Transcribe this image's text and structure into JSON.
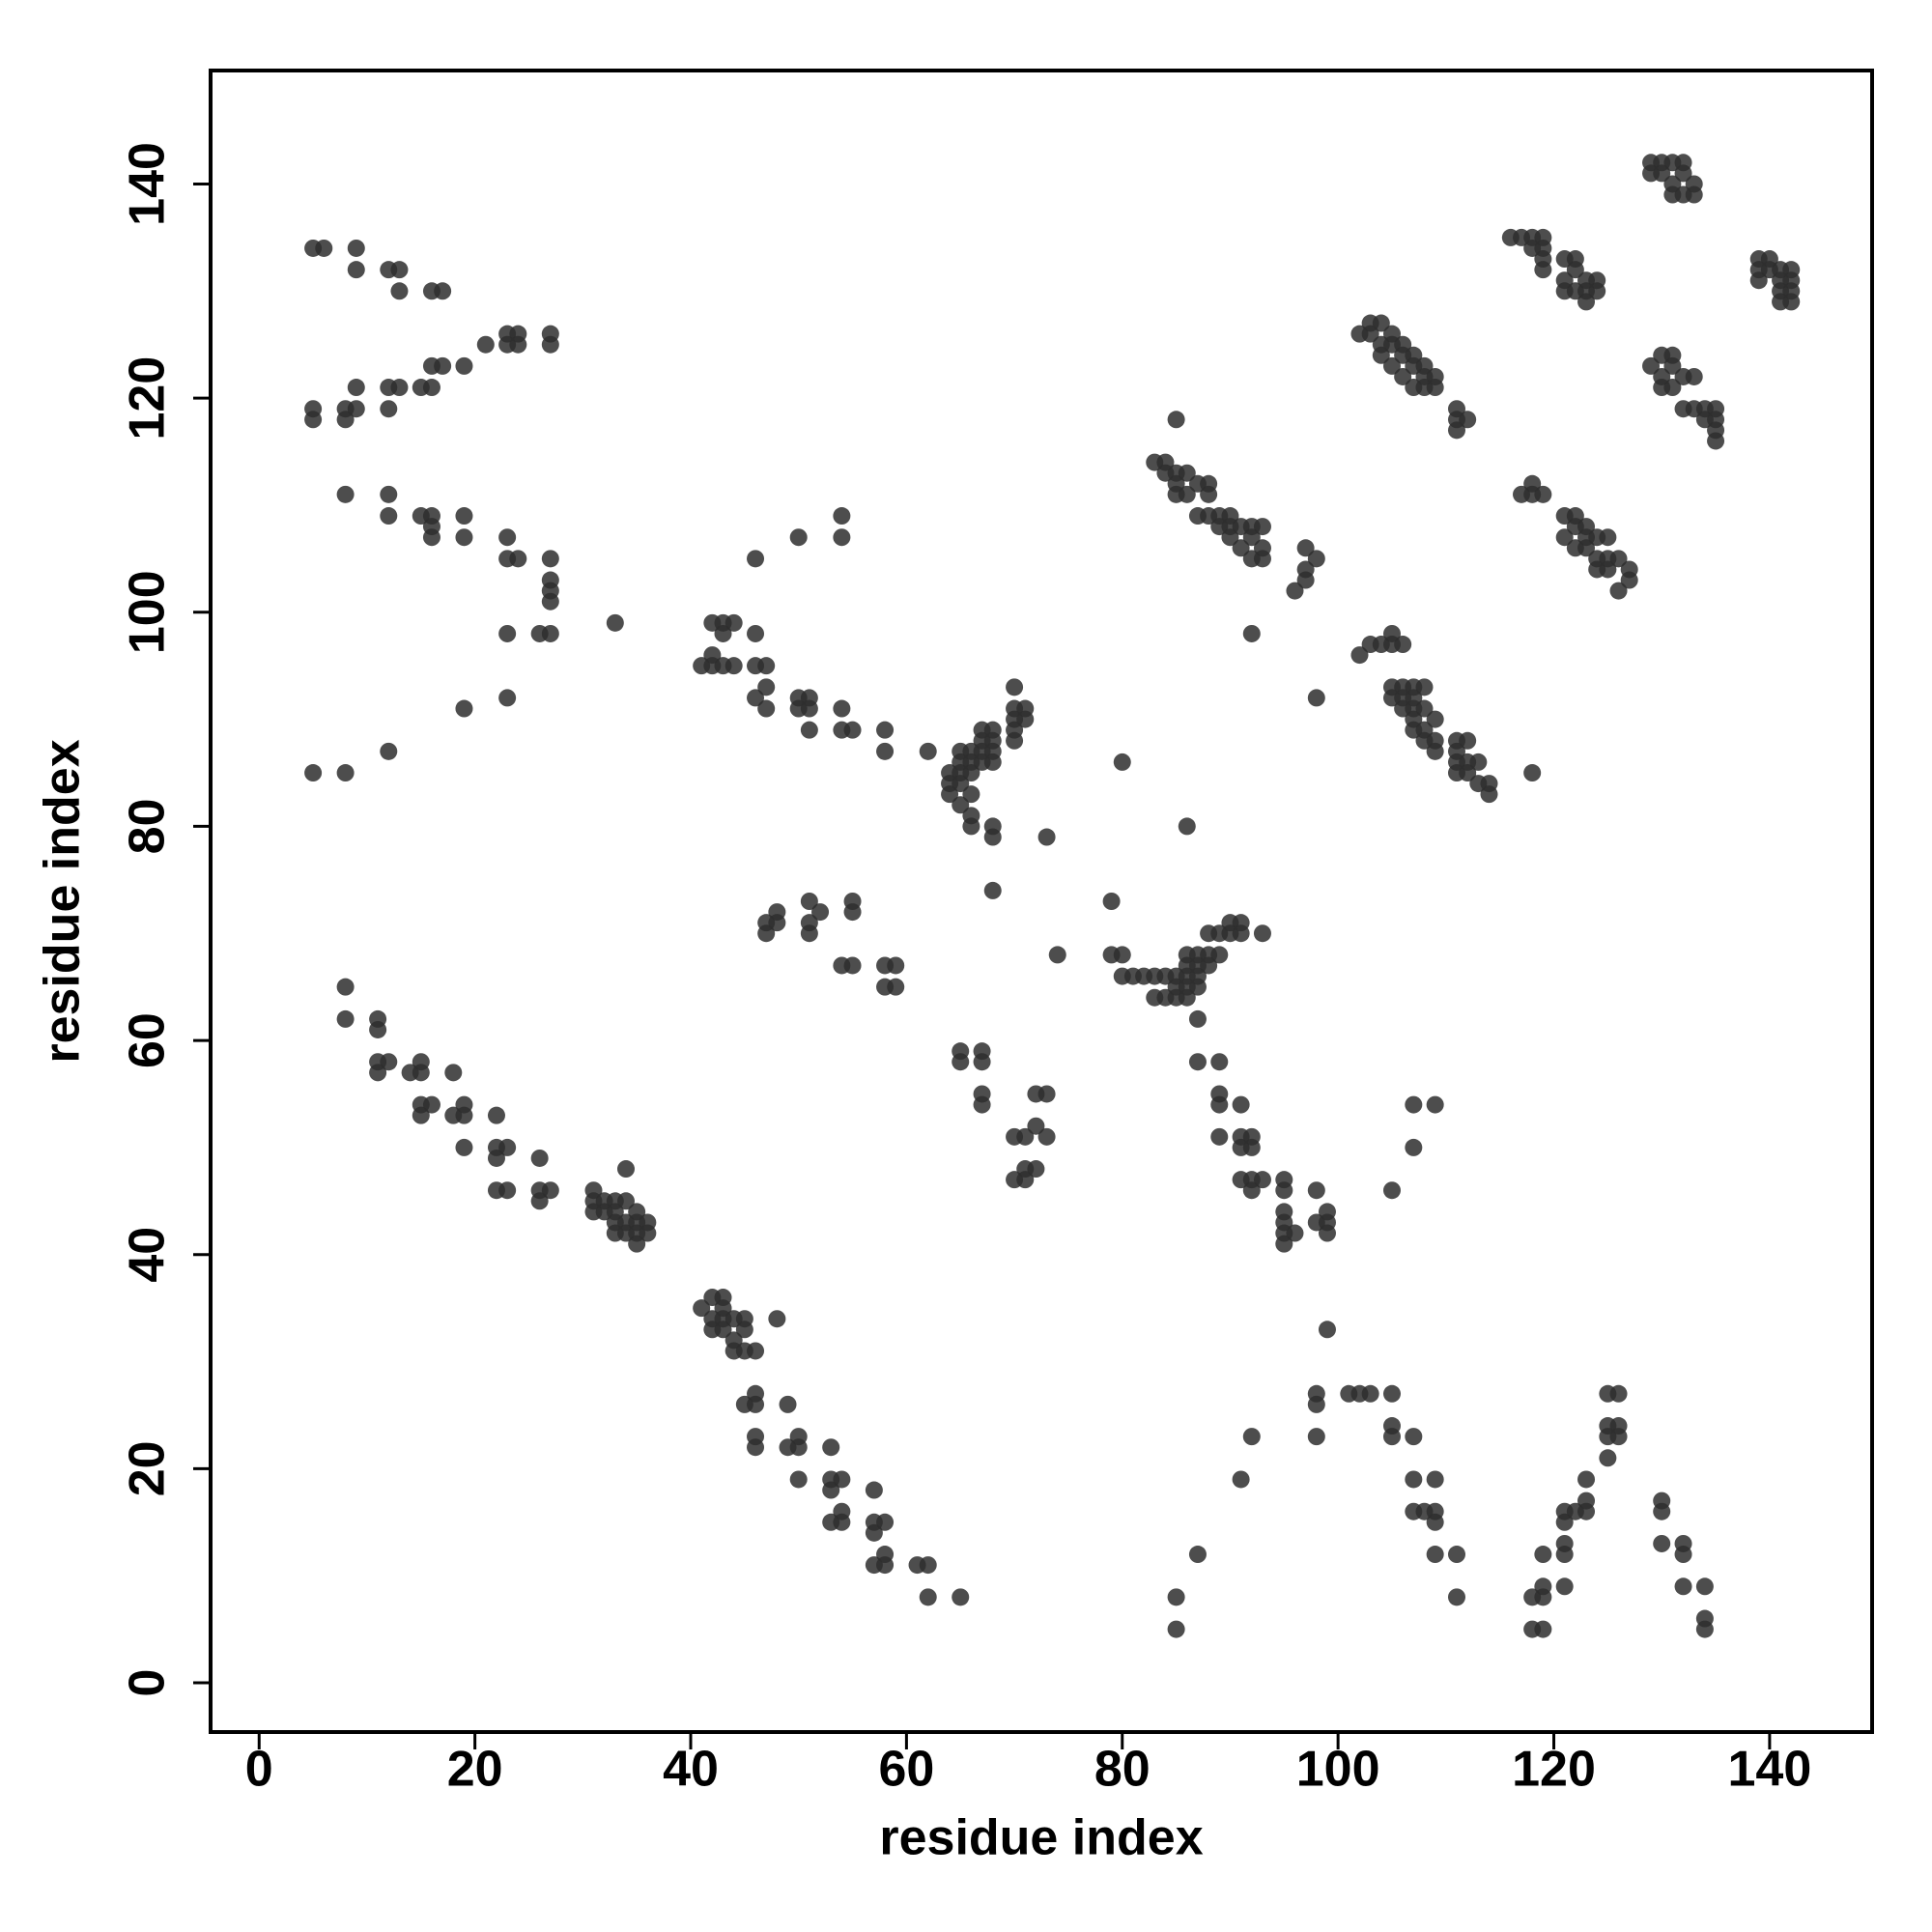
{
  "chart_data": {
    "type": "scatter",
    "x_label": "residue index",
    "y_label": "residue index",
    "xlim": [
      -4.5,
      149.5
    ],
    "ylim": [
      -4.6,
      150.6
    ],
    "xticks": [
      0,
      20,
      40,
      60,
      80,
      100,
      120,
      140
    ],
    "yticks": [
      0,
      20,
      40,
      60,
      80,
      100,
      120,
      140
    ],
    "grid": false,
    "x": [
      5,
      6,
      9,
      9,
      12,
      13,
      13,
      16,
      17,
      5,
      5,
      8,
      8,
      9,
      9,
      12,
      12,
      13,
      15,
      16,
      16,
      17,
      19,
      21,
      23,
      23,
      24,
      24,
      27,
      27,
      8,
      12,
      12,
      15,
      16,
      16,
      16,
      19,
      19,
      23,
      23,
      24,
      27,
      27,
      27,
      27,
      27,
      26,
      23,
      33,
      23,
      19,
      12,
      5,
      8,
      41,
      42,
      42,
      43,
      43,
      44,
      42,
      43,
      44,
      46,
      46,
      47,
      46,
      47,
      47,
      50,
      50,
      51,
      51,
      51,
      54,
      54,
      55,
      58,
      58,
      62,
      46,
      50,
      54,
      54,
      64,
      64,
      64,
      65,
      65,
      65,
      65,
      66,
      66,
      66,
      66,
      65,
      66,
      66,
      67,
      67,
      67,
      67,
      68,
      68,
      68,
      68,
      68,
      68,
      70,
      70,
      70,
      70,
      70,
      71,
      71,
      80,
      73,
      68,
      74,
      47,
      47,
      48,
      48,
      51,
      51,
      51,
      52,
      54,
      55,
      55,
      55,
      58,
      58,
      59,
      59,
      65,
      65,
      67,
      67,
      67,
      67,
      70,
      71,
      72,
      72,
      73,
      73,
      70,
      71,
      71,
      72,
      79,
      79,
      80,
      80,
      81,
      82,
      83,
      83,
      84,
      84,
      85,
      85,
      85,
      86,
      86,
      86,
      86,
      86,
      87,
      87,
      87,
      87,
      88,
      88,
      88,
      89,
      89,
      90,
      90,
      91,
      91,
      93,
      86,
      87,
      87,
      89,
      89,
      89,
      89,
      91,
      91,
      91,
      91,
      92,
      92,
      92,
      92,
      93,
      95,
      95,
      95,
      95,
      95,
      95,
      96,
      98,
      98,
      99,
      99,
      99,
      98,
      92,
      83,
      84,
      84,
      85,
      85,
      85,
      86,
      86,
      87,
      87,
      88,
      88,
      88,
      89,
      89,
      90,
      90,
      90,
      91,
      91,
      92,
      92,
      92,
      93,
      93,
      93,
      85,
      96,
      97,
      97,
      97,
      98,
      102,
      103,
      103,
      104,
      104,
      104,
      105,
      105,
      105,
      106,
      106,
      106,
      107,
      107,
      107,
      108,
      108,
      108,
      109,
      109,
      111,
      111,
      111,
      112,
      102,
      103,
      104,
      105,
      105,
      106,
      105,
      105,
      106,
      106,
      106,
      107,
      107,
      107,
      107,
      107,
      108,
      108,
      108,
      108,
      109,
      109,
      109,
      111,
      111,
      111,
      111,
      112,
      112,
      112,
      113,
      113,
      114,
      114,
      118,
      116,
      117,
      118,
      118,
      119,
      119,
      119,
      119,
      121,
      121,
      121,
      122,
      122,
      122,
      123,
      123,
      123,
      124,
      124,
      117,
      118,
      118,
      119,
      121,
      121,
      122,
      122,
      122,
      123,
      123,
      123,
      124,
      124,
      124,
      125,
      125,
      125,
      126,
      126,
      127,
      127,
      129,
      130,
      130,
      130,
      131,
      131,
      131,
      132,
      132,
      133,
      133,
      134,
      134,
      135,
      135,
      135,
      135,
      129,
      129,
      130,
      130,
      131,
      131,
      131,
      132,
      132,
      132,
      133,
      133,
      139,
      139,
      139,
      140,
      140,
      141,
      141,
      141,
      141,
      142,
      142,
      142,
      142,
      8,
      8,
      11,
      11,
      11,
      11,
      12,
      14,
      15,
      15,
      15,
      15,
      16,
      18,
      18,
      19,
      19,
      19,
      22,
      22,
      22,
      23,
      22,
      23,
      26,
      26,
      26,
      27,
      31,
      31,
      31,
      32,
      32,
      33,
      33,
      33,
      33,
      34,
      34,
      34,
      34,
      35,
      35,
      35,
      35,
      36,
      36,
      41,
      42,
      42,
      42,
      43,
      43,
      43,
      43,
      44,
      44,
      44,
      45,
      45,
      45,
      46,
      48,
      45,
      46,
      46,
      46,
      46,
      49,
      49,
      50,
      50,
      50,
      53,
      53,
      53,
      54,
      53,
      54,
      54,
      57,
      57,
      57,
      58,
      57,
      58,
      58,
      61,
      62,
      62,
      65,
      85,
      85,
      87,
      91,
      92,
      98,
      98,
      98,
      99,
      101,
      102,
      103,
      105,
      105,
      105,
      107,
      107,
      107,
      108,
      109,
      109,
      109,
      109,
      111,
      111,
      107,
      109,
      107,
      105,
      118,
      118,
      119,
      119,
      119,
      119,
      121,
      121,
      121,
      121,
      121,
      122,
      123,
      123,
      123,
      125,
      125,
      125,
      125,
      126,
      126,
      126,
      130,
      130,
      130,
      132,
      132,
      132,
      134,
      134,
      134
    ],
    "series": [
      {
        "color": "#2e2e2e",
        "values": [
          134,
          134,
          134,
          132,
          132,
          132,
          130,
          130,
          130,
          119,
          118,
          118,
          119,
          119,
          121,
          121,
          119,
          121,
          121,
          121,
          123,
          123,
          123,
          125,
          126,
          125,
          126,
          125,
          126,
          125,
          111,
          111,
          109,
          109,
          109,
          108,
          107,
          109,
          107,
          107,
          105,
          105,
          105,
          103,
          102,
          101,
          98,
          98,
          98,
          99,
          92,
          91,
          87,
          85,
          85,
          95,
          96,
          99,
          98,
          99,
          99,
          95,
          95,
          95,
          98,
          95,
          95,
          92,
          93,
          91,
          92,
          91,
          92,
          91,
          89,
          91,
          89,
          89,
          89,
          87,
          87,
          105,
          107,
          109,
          107,
          85,
          84,
          83,
          86,
          87,
          85,
          84,
          87,
          86,
          85,
          83,
          82,
          81,
          80,
          89,
          88,
          87,
          86,
          89,
          88,
          87,
          86,
          80,
          79,
          93,
          91,
          90,
          89,
          88,
          91,
          90,
          86,
          79,
          74,
          68,
          71,
          70,
          72,
          71,
          73,
          71,
          70,
          72,
          67,
          73,
          72,
          67,
          67,
          65,
          67,
          65,
          59,
          58,
          59,
          58,
          55,
          54,
          51,
          51,
          55,
          52,
          55,
          51,
          47,
          47,
          48,
          48,
          73,
          68,
          68,
          66,
          66,
          66,
          66,
          64,
          64,
          66,
          64,
          65,
          66,
          64,
          65,
          66,
          67,
          68,
          65,
          66,
          67,
          68,
          68,
          67,
          70,
          68,
          70,
          70,
          71,
          71,
          70,
          70,
          80,
          62,
          58,
          58,
          55,
          54,
          51,
          54,
          51,
          50,
          47,
          51,
          50,
          47,
          46,
          47,
          47,
          46,
          44,
          43,
          42,
          41,
          42,
          46,
          43,
          44,
          43,
          42,
          92,
          98,
          114,
          114,
          113,
          113,
          112,
          111,
          113,
          111,
          112,
          109,
          112,
          111,
          109,
          108,
          109,
          109,
          108,
          107,
          108,
          106,
          108,
          107,
          105,
          108,
          106,
          105,
          118,
          102,
          106,
          104,
          103,
          105,
          126,
          127,
          126,
          127,
          125,
          124,
          126,
          125,
          123,
          125,
          124,
          122,
          124,
          123,
          121,
          123,
          122,
          121,
          121,
          122,
          119,
          118,
          117,
          118,
          96,
          97,
          97,
          98,
          97,
          97,
          93,
          92,
          93,
          92,
          91,
          93,
          92,
          91,
          90,
          89,
          93,
          91,
          89,
          88,
          90,
          88,
          87,
          88,
          87,
          86,
          85,
          88,
          86,
          85,
          86,
          84,
          84,
          83,
          85,
          135,
          135,
          135,
          134,
          135,
          134,
          133,
          132,
          133,
          131,
          130,
          133,
          132,
          130,
          131,
          130,
          129,
          131,
          130,
          111,
          112,
          111,
          111,
          109,
          107,
          109,
          108,
          106,
          108,
          107,
          106,
          107,
          105,
          104,
          107,
          105,
          104,
          105,
          102,
          104,
          103,
          123,
          124,
          122,
          121,
          124,
          123,
          121,
          122,
          119,
          122,
          119,
          119,
          118,
          119,
          118,
          117,
          116,
          142,
          141,
          142,
          141,
          142,
          140,
          139,
          142,
          141,
          139,
          140,
          139,
          133,
          132,
          131,
          133,
          132,
          132,
          131,
          130,
          129,
          132,
          131,
          130,
          129,
          65,
          62,
          62,
          61,
          58,
          57,
          58,
          57,
          58,
          57,
          54,
          53,
          54,
          57,
          53,
          54,
          53,
          50,
          53,
          50,
          49,
          50,
          46,
          46,
          49,
          46,
          45,
          46,
          46,
          45,
          44,
          45,
          44,
          45,
          44,
          43,
          42,
          48,
          45,
          43,
          42,
          44,
          43,
          42,
          41,
          43,
          42,
          35,
          36,
          34,
          33,
          36,
          35,
          34,
          33,
          34,
          32,
          31,
          34,
          33,
          31,
          31,
          34,
          26,
          27,
          26,
          23,
          22,
          26,
          22,
          23,
          22,
          19,
          22,
          19,
          18,
          19,
          15,
          16,
          15,
          18,
          15,
          14,
          15,
          11,
          12,
          11,
          11,
          11,
          8,
          8,
          8,
          5,
          12,
          19,
          23,
          27,
          26,
          23,
          33,
          27,
          27,
          27,
          27,
          24,
          23,
          23,
          19,
          16,
          16,
          19,
          16,
          15,
          12,
          12,
          8,
          54,
          54,
          50,
          46,
          8,
          5,
          12,
          9,
          8,
          5,
          16,
          15,
          13,
          12,
          9,
          16,
          19,
          17,
          16,
          27,
          24,
          23,
          21,
          27,
          24,
          23,
          17,
          16,
          13,
          13,
          12,
          9,
          9,
          6,
          5
        ]
      }
    ]
  }
}
